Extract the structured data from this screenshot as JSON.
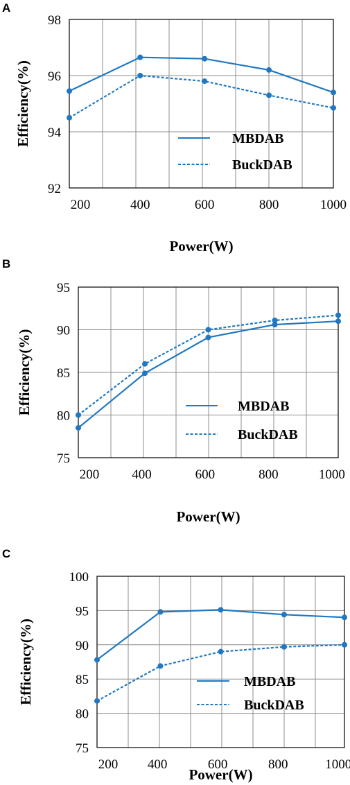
{
  "chart_data": [
    {
      "panel": "A",
      "type": "line",
      "x": [
        180,
        400,
        600,
        800,
        1000
      ],
      "xticks": [
        200,
        400,
        600,
        800,
        1000
      ],
      "xlim": [
        180,
        1000
      ],
      "yticks": [
        92,
        94,
        96,
        98
      ],
      "ylim": [
        92,
        98
      ],
      "xlabel": "Power(W)",
      "ylabel": "Efficiency(%)",
      "legend_position": "bottom-right",
      "grid": true,
      "series": [
        {
          "name": "MBDAB",
          "style": "solid",
          "values": [
            95.45,
            96.65,
            96.6,
            96.2,
            95.4
          ]
        },
        {
          "name": "BuckDAB",
          "style": "dashed",
          "values": [
            94.5,
            96.0,
            95.8,
            95.3,
            94.85
          ]
        }
      ]
    },
    {
      "panel": "B",
      "type": "line",
      "x": [
        200,
        410,
        610,
        820,
        1020
      ],
      "xticks": [
        200,
        400,
        600,
        800,
        1000
      ],
      "xlim": [
        200,
        1020
      ],
      "yticks": [
        75,
        80,
        85,
        90,
        95
      ],
      "ylim": [
        75,
        95
      ],
      "xlabel": "Power(W)",
      "ylabel": "Efficiency(%)",
      "legend_position": "bottom-right",
      "grid": true,
      "series": [
        {
          "name": "MBDAB",
          "style": "solid",
          "values": [
            78.5,
            84.9,
            89.1,
            90.6,
            91.0
          ]
        },
        {
          "name": "BuckDAB",
          "style": "dashed",
          "values": [
            80.0,
            86.0,
            90.0,
            91.1,
            91.7
          ]
        }
      ]
    },
    {
      "panel": "C",
      "type": "line",
      "x": [
        200,
        410,
        610,
        820,
        1020
      ],
      "xticks": [
        200,
        400,
        600,
        800,
        1000
      ],
      "xlim": [
        200,
        1020
      ],
      "yticks": [
        75,
        80,
        85,
        90,
        95,
        100
      ],
      "ylim": [
        75,
        100
      ],
      "xlabel": "Power(W)",
      "ylabel": "Efficiency(%)",
      "legend_position": "bottom-right",
      "grid": true,
      "series": [
        {
          "name": "MBDAB",
          "style": "solid",
          "values": [
            87.8,
            94.8,
            95.1,
            94.4,
            94.0
          ]
        },
        {
          "name": "BuckDAB",
          "style": "dashed",
          "values": [
            81.8,
            86.9,
            89.0,
            89.7,
            90.0
          ]
        }
      ]
    }
  ],
  "colors": {
    "series": "#1f78c1",
    "grid": "#8c8c8c",
    "frame": "#000000"
  }
}
